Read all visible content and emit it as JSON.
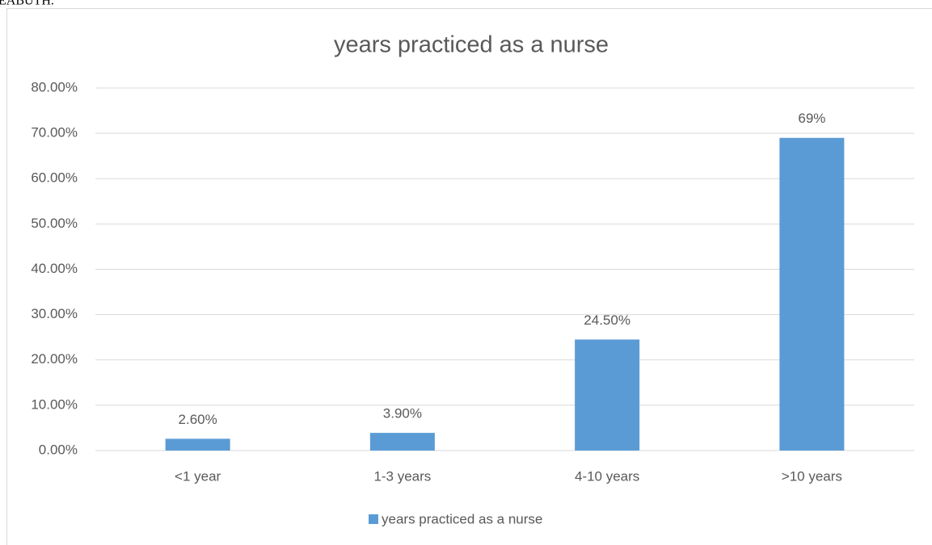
{
  "header_text": "EABUTH.",
  "chart_data": {
    "type": "bar",
    "title": "years practiced as a nurse",
    "categories": [
      "<1 year",
      "1-3 years",
      "4-10 years",
      ">10 years"
    ],
    "series": [
      {
        "name": "years practiced as a nurse",
        "color": "#5b9bd5",
        "values": [
          2.6,
          3.9,
          24.5,
          69
        ],
        "value_labels": [
          "2.60%",
          "3.90%",
          "24.50%",
          "69%"
        ]
      }
    ],
    "ylim": [
      0,
      80
    ],
    "yticks": [
      {
        "value": 0,
        "label": "0.00%"
      },
      {
        "value": 10,
        "label": "10.00%"
      },
      {
        "value": 20,
        "label": "20.00%"
      },
      {
        "value": 30,
        "label": "30.00%"
      },
      {
        "value": 40,
        "label": "40.00%"
      },
      {
        "value": 50,
        "label": "50.00%"
      },
      {
        "value": 60,
        "label": "60.00%"
      },
      {
        "value": 70,
        "label": "70.00%"
      },
      {
        "value": 80,
        "label": "80.00%"
      }
    ],
    "grid": true,
    "legend": "bottom"
  }
}
